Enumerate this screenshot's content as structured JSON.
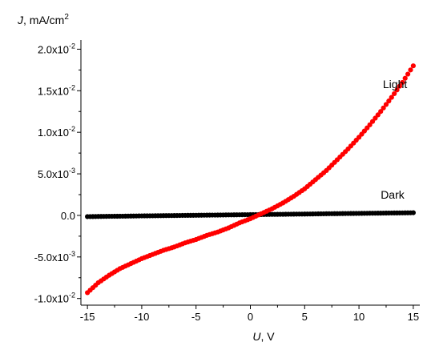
{
  "chart_data": {
    "type": "scatter",
    "y_axis_title": {
      "symbol": "J",
      "rest": ", mA/cm",
      "sup": "2"
    },
    "x_axis_title": {
      "symbol": "U",
      "rest": ", V"
    },
    "xlim": [
      -15.6,
      15.6
    ],
    "ylim": [
      -0.0108,
      0.0211
    ],
    "x_ticks": [
      {
        "value": -15,
        "label": "-15"
      },
      {
        "value": -10,
        "label": "-10"
      },
      {
        "value": -5,
        "label": "-5"
      },
      {
        "value": 0,
        "label": "0"
      },
      {
        "value": 5,
        "label": "5"
      },
      {
        "value": 10,
        "label": "10"
      },
      {
        "value": 15,
        "label": "15"
      }
    ],
    "y_ticks": [
      {
        "value": -0.01,
        "mantissa": "-1.0x10",
        "exp": "-2"
      },
      {
        "value": -0.005,
        "mantissa": "-5.0x10",
        "exp": "-3"
      },
      {
        "value": 0,
        "mantissa": "0.0",
        "exp": ""
      },
      {
        "value": 0.005,
        "mantissa": "5.0x10",
        "exp": "-3"
      },
      {
        "value": 0.01,
        "mantissa": "1.0x10",
        "exp": "-2"
      },
      {
        "value": 0.015,
        "mantissa": "1.5x10",
        "exp": "-2"
      },
      {
        "value": 0.02,
        "mantissa": "2.0x10",
        "exp": "-2"
      }
    ],
    "series": [
      {
        "name": "Dark",
        "color": "#000000",
        "x": [
          -15,
          -14,
          -13,
          -12,
          -11,
          -10,
          -9,
          -8,
          -7,
          -6,
          -5,
          -4,
          -3,
          -2,
          -1,
          0,
          1,
          2,
          3,
          4,
          5,
          6,
          7,
          8,
          9,
          10,
          11,
          12,
          13,
          14,
          15
        ],
        "y": [
          -0.00015,
          -0.00013,
          -0.00011,
          -0.0001,
          -8e-05,
          -6e-05,
          -5e-05,
          -3e-05,
          -2e-05,
          0,
          1e-05,
          3e-05,
          4e-05,
          6e-05,
          7e-05,
          9e-05,
          0.0001,
          0.00012,
          0.00013,
          0.00015,
          0.00016,
          0.00018,
          0.0002,
          0.00021,
          0.00023,
          0.00024,
          0.00026,
          0.00027,
          0.00029,
          0.0003,
          0.00032
        ]
      },
      {
        "name": "Light",
        "color": "#ff0000",
        "x": [
          -15,
          -14,
          -13,
          -12,
          -11,
          -10,
          -9,
          -8,
          -7,
          -6,
          -5,
          -4,
          -3,
          -2,
          -1,
          0,
          1,
          2,
          3,
          4,
          5,
          6,
          7,
          8,
          9,
          10,
          11,
          12,
          13,
          14,
          15
        ],
        "y": [
          -0.0093,
          -0.0081,
          -0.0072,
          -0.0064,
          -0.0058,
          -0.0052,
          -0.0047,
          -0.0042,
          -0.0038,
          -0.0033,
          -0.0029,
          -0.0024,
          -0.002,
          -0.0015,
          -0.0009,
          -0.0004,
          0.0002,
          0.0008,
          0.0015,
          0.0023,
          0.0032,
          0.0043,
          0.0054,
          0.0067,
          0.008,
          0.0094,
          0.0109,
          0.0125,
          0.0142,
          0.016,
          0.018
        ]
      }
    ],
    "annotations": [
      {
        "text": "Light",
        "x": 12.2,
        "y": 0.0153
      },
      {
        "text": "Dark",
        "x": 12.0,
        "y": 0.002
      }
    ]
  }
}
